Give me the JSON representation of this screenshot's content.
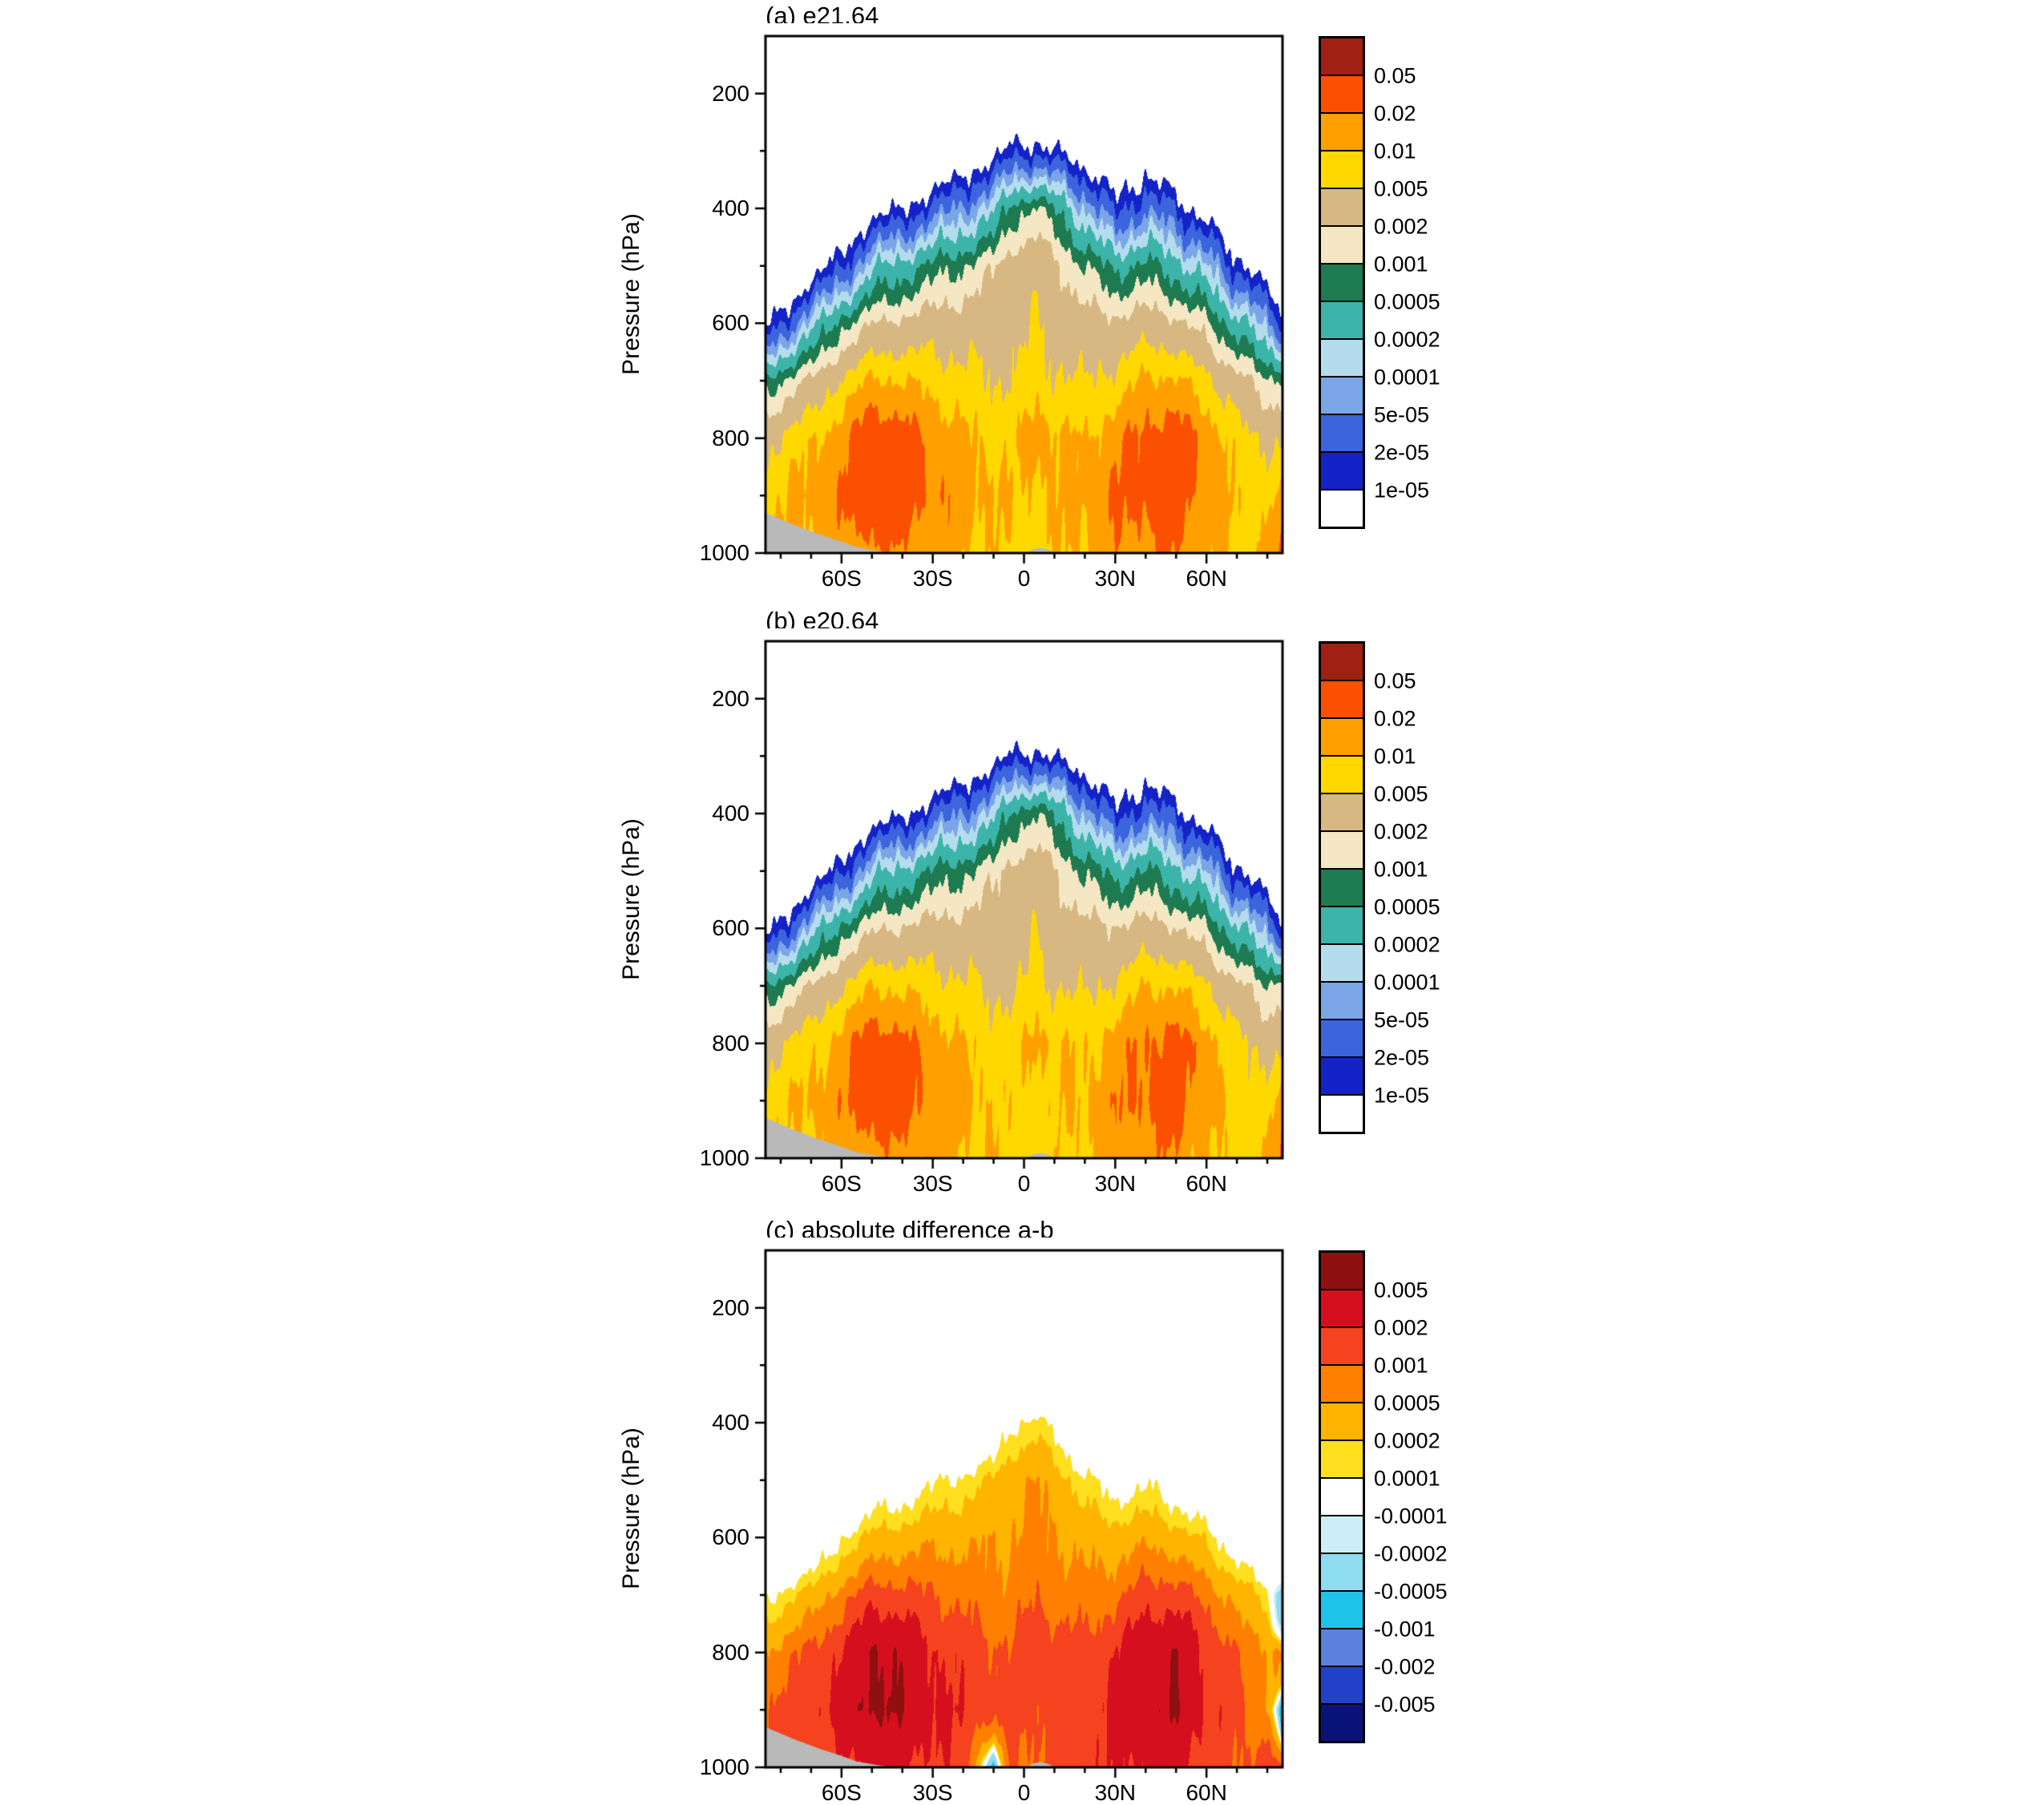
{
  "page": {
    "background": "#ffffff"
  },
  "chart_data": [
    {
      "type": "filled_contour",
      "title": "(a) e21.64",
      "ylabel": "Pressure (hPa)",
      "x_range": [
        -85,
        85
      ],
      "y_range": [
        100,
        1000
      ],
      "y_axis_inverted": true,
      "xticks": {
        "values": [
          -60,
          -30,
          0,
          30,
          60
        ],
        "labels": [
          "60S",
          "30S",
          "0",
          "30N",
          "60N"
        ],
        "minor": [
          -80,
          -70,
          -50,
          -40,
          -20,
          -10,
          10,
          20,
          40,
          50,
          70,
          80
        ]
      },
      "yticks": {
        "values": [
          200,
          400,
          600,
          800,
          1000
        ],
        "labels": [
          "200",
          "400",
          "600",
          "800",
          "1000"
        ],
        "minor": [
          300,
          500,
          700,
          900
        ]
      },
      "levels": [
        1e-05,
        2e-05,
        5e-05,
        0.0001,
        0.0002,
        0.0005,
        0.001,
        0.002,
        0.005,
        0.01,
        0.02,
        0.05
      ],
      "colors": [
        "#ffffff",
        "#1423c8",
        "#3c64dc",
        "#7aa5e6",
        "#b4dcec",
        "#3cb4aa",
        "#1e7a50",
        "#f5e7c3",
        "#d7b882",
        "#ffd800",
        "#ffa000",
        "#fa5000",
        "#a02014"
      ],
      "colorbar_labels": [
        "0.05",
        "0.02",
        "0.01",
        "0.005",
        "0.002",
        "0.001",
        "0.0005",
        "0.0002",
        "0.0001",
        "5e-05",
        "2e-05",
        "1e-05"
      ],
      "grid": {
        "lats": [
          -85,
          -75,
          -60,
          -50,
          -40,
          -30,
          -20,
          -10,
          -4,
          4,
          10,
          20,
          30,
          40,
          50,
          60,
          70,
          80,
          85
        ],
        "plevs": [
          100,
          200,
          300,
          400,
          500,
          600,
          700,
          800,
          900,
          1000
        ],
        "log10_values": [
          [
            -6,
            -6,
            -6,
            -6,
            -6,
            -5.1,
            -3.2,
            -2.4,
            -2.1,
            -2.0
          ],
          [
            -6,
            -6,
            -6,
            -6,
            -5.8,
            -4.3,
            -2.8,
            -2.15,
            -1.95,
            -2.0
          ],
          [
            -6,
            -6,
            -6,
            -5.9,
            -4.7,
            -3.1,
            -2.25,
            -1.8,
            -1.7,
            -1.9
          ],
          [
            -6,
            -6,
            -6,
            -5.3,
            -3.8,
            -2.7,
            -1.95,
            -1.42,
            -1.36,
            -1.7
          ],
          [
            -6,
            -6,
            -6,
            -5.0,
            -3.5,
            -2.6,
            -2.0,
            -1.55,
            -1.5,
            -1.78
          ],
          [
            -6,
            -6,
            -5.9,
            -4.6,
            -3.2,
            -2.5,
            -2.1,
            -1.78,
            -1.68,
            -1.85
          ],
          [
            -6,
            -6,
            -5.6,
            -4.2,
            -3.0,
            -2.5,
            -2.2,
            -1.95,
            -1.85,
            -1.95
          ],
          [
            -6,
            -6,
            -5.2,
            -3.8,
            -2.75,
            -2.45,
            -2.3,
            -2.05,
            -1.95,
            -2.05
          ],
          [
            -6,
            -6,
            -4.9,
            -3.2,
            -2.5,
            -2.4,
            -2.3,
            -2.1,
            -2.05,
            -2.1
          ],
          [
            -6,
            -6,
            -4.8,
            -2.9,
            -2.4,
            -2.3,
            -2.15,
            -1.8,
            -2.0,
            -2.1
          ],
          [
            -6,
            -6,
            -5.0,
            -3.3,
            -2.6,
            -2.4,
            -2.25,
            -1.95,
            -2.0,
            -2.05
          ],
          [
            -6,
            -6,
            -5.4,
            -4.0,
            -3.0,
            -2.55,
            -2.3,
            -2.0,
            -1.9,
            -1.95
          ],
          [
            -6,
            -6,
            -5.8,
            -4.8,
            -3.4,
            -2.6,
            -2.2,
            -1.8,
            -1.7,
            -1.8
          ],
          [
            -6,
            -6,
            -5.4,
            -4.4,
            -3.2,
            -2.5,
            -1.95,
            -1.6,
            -1.55,
            -1.75
          ],
          [
            -6,
            -6,
            -5.9,
            -4.7,
            -3.5,
            -2.6,
            -1.95,
            -1.5,
            -1.48,
            -1.7
          ],
          [
            -6,
            -6,
            -6,
            -5.3,
            -4.0,
            -2.9,
            -2.2,
            -1.8,
            -1.8,
            -1.95
          ],
          [
            -6,
            -6,
            -6,
            -5.9,
            -4.8,
            -3.5,
            -2.55,
            -2.15,
            -2.05,
            -2.1
          ],
          [
            -6,
            -6,
            -6,
            -6,
            -5.5,
            -4.2,
            -2.9,
            -2.35,
            -2.1,
            -1.9
          ],
          [
            -6,
            -6,
            -6,
            -6,
            -5.8,
            -4.6,
            -3.0,
            -2.4,
            -1.95,
            -1.65
          ]
        ]
      },
      "terrain_color": "#b9b9b9",
      "terrain": [
        [
          [
            -85,
            930
          ],
          [
            -76,
            950
          ],
          [
            -68,
            966
          ],
          [
            -60,
            980
          ],
          [
            -55,
            990
          ],
          [
            -48,
            996
          ],
          [
            -43,
            1000
          ]
        ],
        [
          [
            1,
            1000
          ],
          [
            3,
            993
          ],
          [
            5.5,
            991
          ],
          [
            8,
            994
          ],
          [
            10.5,
            1000
          ]
        ]
      ]
    },
    {
      "type": "filled_contour",
      "title": "(b) e20.64",
      "ylabel": "Pressure (hPa)",
      "x_range": [
        -85,
        85
      ],
      "y_range": [
        100,
        1000
      ],
      "y_axis_inverted": true,
      "xticks": {
        "values": [
          -60,
          -30,
          0,
          30,
          60
        ],
        "labels": [
          "60S",
          "30S",
          "0",
          "30N",
          "60N"
        ],
        "minor": [
          -80,
          -70,
          -50,
          -40,
          -20,
          -10,
          10,
          20,
          40,
          50,
          70,
          80
        ]
      },
      "yticks": {
        "values": [
          200,
          400,
          600,
          800,
          1000
        ],
        "labels": [
          "200",
          "400",
          "600",
          "800",
          "1000"
        ],
        "minor": [
          300,
          500,
          700,
          900
        ]
      },
      "levels": [
        1e-05,
        2e-05,
        5e-05,
        0.0001,
        0.0002,
        0.0005,
        0.001,
        0.002,
        0.005,
        0.01,
        0.02,
        0.05
      ],
      "colors": [
        "#ffffff",
        "#1423c8",
        "#3c64dc",
        "#7aa5e6",
        "#b4dcec",
        "#3cb4aa",
        "#1e7a50",
        "#f5e7c3",
        "#d7b882",
        "#ffd800",
        "#ffa000",
        "#fa5000",
        "#a02014"
      ],
      "colorbar_labels": [
        "0.05",
        "0.02",
        "0.01",
        "0.005",
        "0.002",
        "0.001",
        "0.0005",
        "0.0002",
        "0.0001",
        "5e-05",
        "2e-05",
        "1e-05"
      ],
      "grid": {
        "lats": [
          -85,
          -75,
          -60,
          -50,
          -40,
          -30,
          -20,
          -10,
          -4,
          4,
          10,
          20,
          30,
          40,
          50,
          60,
          70,
          80,
          85
        ],
        "plevs": [
          100,
          200,
          300,
          400,
          500,
          600,
          700,
          800,
          900,
          1000
        ],
        "log10_values": [
          [
            -6,
            -6,
            -6,
            -6,
            -6,
            -5.2,
            -3.26,
            -2.46,
            -2.16,
            -2.06
          ],
          [
            -6,
            -6,
            -6,
            -6,
            -5.85,
            -4.36,
            -2.86,
            -2.21,
            -2.01,
            -2.06
          ],
          [
            -6,
            -6,
            -6,
            -5.95,
            -4.76,
            -3.16,
            -2.31,
            -1.86,
            -1.76,
            -1.96
          ],
          [
            -6,
            -6,
            -6,
            -5.4,
            -3.88,
            -2.76,
            -2.01,
            -1.49,
            -1.43,
            -1.76
          ],
          [
            -6,
            -6,
            -6,
            -5.08,
            -3.56,
            -2.66,
            -2.06,
            -1.62,
            -1.57,
            -1.84
          ],
          [
            -6,
            -6,
            -5.95,
            -4.66,
            -3.26,
            -2.56,
            -2.16,
            -1.84,
            -1.74,
            -1.91
          ],
          [
            -6,
            -6,
            -5.66,
            -4.26,
            -3.06,
            -2.56,
            -2.26,
            -2.01,
            -1.91,
            -2.01
          ],
          [
            -6,
            -6,
            -5.26,
            -3.86,
            -2.81,
            -2.51,
            -2.36,
            -2.11,
            -2.01,
            -2.02
          ],
          [
            -6,
            -6,
            -4.96,
            -3.26,
            -2.56,
            -2.46,
            -2.36,
            -2.16,
            -2.11,
            -2.16
          ],
          [
            -6,
            -6,
            -4.86,
            -2.96,
            -2.46,
            -2.36,
            -2.21,
            -1.86,
            -2.06,
            -2.16
          ],
          [
            -6,
            -6,
            -5.06,
            -3.36,
            -2.66,
            -2.46,
            -2.31,
            -2.01,
            -2.06,
            -2.11
          ],
          [
            -6,
            -6,
            -5.46,
            -4.06,
            -3.06,
            -2.61,
            -2.36,
            -2.06,
            -1.96,
            -2.01
          ],
          [
            -6,
            -6,
            -5.85,
            -4.86,
            -3.46,
            -2.66,
            -2.26,
            -1.86,
            -1.76,
            -1.86
          ],
          [
            -6,
            -6,
            -5.46,
            -4.46,
            -3.26,
            -2.56,
            -2.01,
            -1.67,
            -1.62,
            -1.81
          ],
          [
            -6,
            -6,
            -5.95,
            -4.76,
            -3.56,
            -2.66,
            -2.01,
            -1.57,
            -1.55,
            -1.76
          ],
          [
            -6,
            -6,
            -6,
            -5.36,
            -4.06,
            -2.96,
            -2.26,
            -1.86,
            -1.86,
            -2.01
          ],
          [
            -6,
            -6,
            -6,
            -5.95,
            -4.86,
            -3.56,
            -2.61,
            -2.21,
            -2.11,
            -2.16
          ],
          [
            -6,
            -6,
            -6,
            -6,
            -5.55,
            -4.26,
            -2.96,
            -2.41,
            -2.13,
            -1.95
          ],
          [
            -6,
            -6,
            -6,
            -6,
            -5.85,
            -4.7,
            -2.82,
            -2.46,
            -1.92,
            -1.67
          ]
        ]
      },
      "terrain_color": "#b9b9b9",
      "terrain": [
        [
          [
            -85,
            930
          ],
          [
            -76,
            950
          ],
          [
            -68,
            966
          ],
          [
            -60,
            980
          ],
          [
            -55,
            990
          ],
          [
            -48,
            996
          ],
          [
            -43,
            1000
          ]
        ],
        [
          [
            1,
            1000
          ],
          [
            3,
            993
          ],
          [
            5.5,
            991
          ],
          [
            8,
            994
          ],
          [
            10.5,
            1000
          ]
        ]
      ]
    },
    {
      "type": "filled_contour",
      "title": "(c) absolute difference a-b",
      "ylabel": "Pressure (hPa)",
      "derived": "a_minus_b",
      "x_range": [
        -85,
        85
      ],
      "y_range": [
        100,
        1000
      ],
      "y_axis_inverted": true,
      "xticks": {
        "values": [
          -60,
          -30,
          0,
          30,
          60
        ],
        "labels": [
          "60S",
          "30S",
          "0",
          "30N",
          "60N"
        ],
        "minor": [
          -80,
          -70,
          -50,
          -40,
          -20,
          -10,
          10,
          20,
          40,
          50,
          70,
          80
        ]
      },
      "yticks": {
        "values": [
          200,
          400,
          600,
          800,
          1000
        ],
        "labels": [
          "200",
          "400",
          "600",
          "800",
          "1000"
        ],
        "minor": [
          300,
          500,
          700,
          900
        ]
      },
      "levels": [
        -0.005,
        -0.002,
        -0.001,
        -0.0005,
        -0.0002,
        -0.0001,
        0.0001,
        0.0002,
        0.0005,
        0.001,
        0.002,
        0.005
      ],
      "colors": [
        "#0a1478",
        "#2041c8",
        "#5a82dc",
        "#1fc3ea",
        "#8ddcf0",
        "#cdeef8",
        "#ffffff",
        "#ffdf1e",
        "#ffb400",
        "#ff8000",
        "#f4431e",
        "#d60f1e",
        "#8e1010"
      ],
      "colorbar_labels": [
        "0.005",
        "0.002",
        "0.001",
        "0.0005",
        "0.0002",
        "0.0001",
        "-0.0001",
        "-0.0002",
        "-0.0005",
        "-0.001",
        "-0.002",
        "-0.005"
      ],
      "terrain_color": "#b9b9b9",
      "terrain": [
        [
          [
            -85,
            930
          ],
          [
            -76,
            950
          ],
          [
            -68,
            966
          ],
          [
            -60,
            980
          ],
          [
            -55,
            990
          ],
          [
            -48,
            996
          ],
          [
            -43,
            1000
          ]
        ],
        [
          [
            1,
            1000
          ],
          [
            3,
            993
          ],
          [
            5.5,
            991
          ],
          [
            8,
            994
          ],
          [
            10.5,
            1000
          ]
        ]
      ]
    }
  ]
}
